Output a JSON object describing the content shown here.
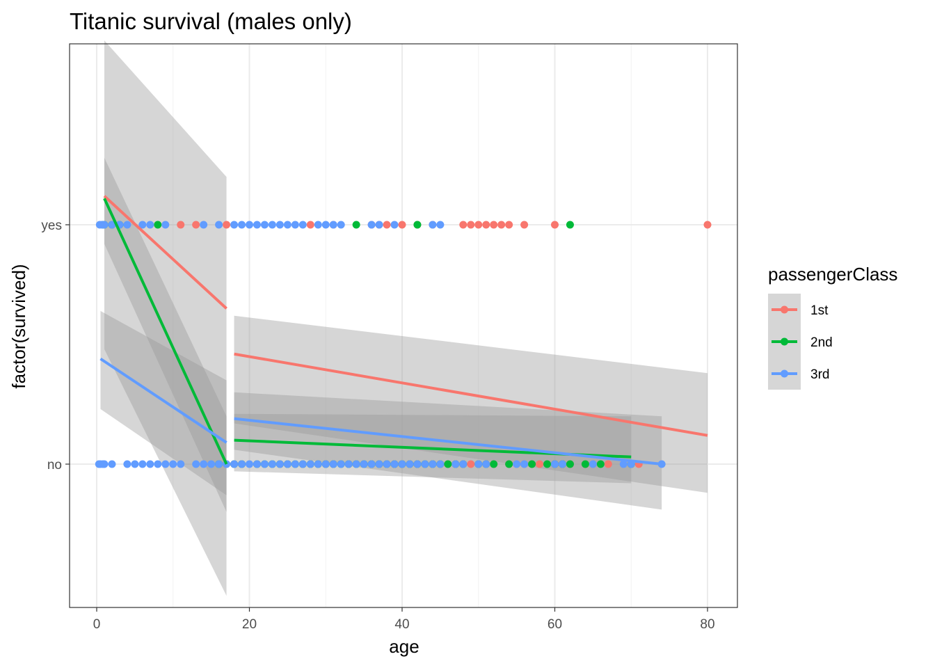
{
  "chart_data": {
    "type": "scatter",
    "title": "Titanic survival (males only)",
    "xlabel": "age",
    "ylabel": "factor(survived)",
    "xlim": [
      -3.5,
      84
    ],
    "ylim": [
      0.4,
      2.8
    ],
    "x_ticks": [
      0,
      20,
      40,
      60,
      80
    ],
    "y_categories": [
      "no",
      "yes"
    ],
    "grid": true,
    "legend": {
      "title": "passengerClass",
      "position": "right"
    },
    "series": [
      {
        "name": "1st",
        "color": "#F8766D",
        "points_yes": [
          0.9,
          11,
          13,
          17,
          28,
          31,
          36,
          37,
          38,
          40,
          42,
          44,
          48,
          49,
          50,
          51,
          52,
          53,
          54,
          56,
          60,
          80
        ],
        "points_no": [
          17,
          18,
          19,
          21,
          24,
          25,
          27,
          28,
          29,
          30,
          31,
          33,
          36,
          37,
          38,
          39,
          40,
          41,
          42,
          44,
          45,
          46,
          47,
          48,
          49,
          50,
          51,
          52,
          54,
          55,
          56,
          57,
          58,
          60,
          61,
          62,
          64,
          65,
          67,
          70,
          71
        ],
        "fits": [
          {
            "x": [
              1,
              17
            ],
            "y": [
              2.12,
              1.65
            ],
            "band_lo": [
              1.48,
              0.45
            ],
            "band_hi": [
              2.77,
              2.2
            ],
            "band_mid": [
              null,
              null
            ]
          },
          {
            "x": [
              18,
              80
            ],
            "y": [
              1.46,
              1.12
            ],
            "band_lo": [
              1.17,
              0.88
            ],
            "band_hi": [
              1.62,
              1.38
            ]
          }
        ]
      },
      {
        "name": "2nd",
        "color": "#00BA38",
        "points_yes": [
          0.8,
          1,
          2,
          3,
          8,
          34,
          42,
          62
        ],
        "points_no": [
          16,
          18,
          19,
          21,
          22,
          23,
          24,
          25,
          26,
          27,
          28,
          29,
          30,
          31,
          32,
          33,
          34,
          35,
          36,
          37,
          38,
          39,
          40,
          41,
          42,
          43,
          44,
          45,
          46,
          47,
          48,
          50,
          51,
          52,
          54,
          57,
          59,
          60,
          61,
          62,
          64,
          66,
          70
        ],
        "fits": [
          {
            "x": [
              1,
              17
            ],
            "y": [
              2.11,
              1.0
            ],
            "band_lo": [
              1.92,
              0.8
            ],
            "band_hi": [
              2.28,
              1.2
            ]
          },
          {
            "x": [
              18,
              70
            ],
            "y": [
              1.1,
              1.03
            ],
            "band_lo": [
              0.97,
              0.92
            ],
            "band_hi": [
              1.21,
              1.2
            ]
          }
        ]
      },
      {
        "name": "3rd",
        "color": "#619CFF",
        "points_yes": [
          0.4,
          0.7,
          1,
          2,
          3,
          4,
          6,
          7,
          9,
          14,
          16,
          18,
          19,
          20,
          21,
          22,
          23,
          24,
          25,
          26,
          27,
          29,
          30,
          31,
          32,
          36,
          37,
          39,
          44,
          45
        ],
        "points_no": [
          0.3,
          0.5,
          0.8,
          1,
          2,
          4,
          5,
          6,
          7,
          8,
          9,
          10,
          11,
          13,
          14,
          15,
          16,
          17,
          18,
          19,
          20,
          21,
          22,
          23,
          24,
          25,
          26,
          27,
          28,
          29,
          30,
          31,
          32,
          33,
          34,
          35,
          36,
          37,
          38,
          39,
          40,
          41,
          42,
          43,
          44,
          45,
          47,
          48,
          50,
          51,
          55,
          56,
          60,
          61,
          65,
          69,
          70,
          74
        ],
        "fits": [
          {
            "x": [
              0.5,
              17
            ],
            "y": [
              1.44,
              1.09
            ],
            "band_lo": [
              1.23,
              0.87
            ],
            "band_hi": [
              1.64,
              1.35
            ]
          },
          {
            "x": [
              18,
              74
            ],
            "y": [
              1.19,
              1.0
            ],
            "band_lo": [
              1.06,
              0.81
            ],
            "band_hi": [
              1.3,
              1.2
            ]
          }
        ]
      }
    ]
  }
}
